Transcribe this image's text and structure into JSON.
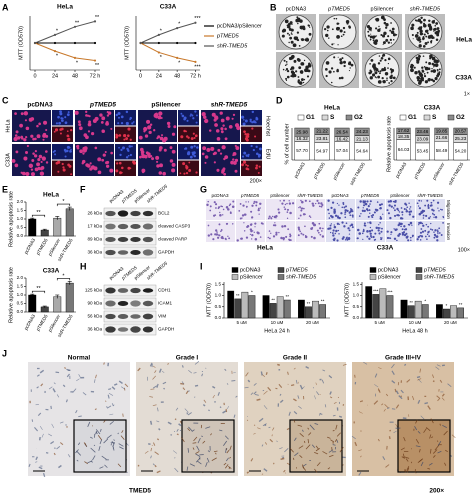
{
  "panel_letters": [
    "A",
    "B",
    "C",
    "D",
    "E",
    "F",
    "G",
    "H",
    "I",
    "J"
  ],
  "chart_data": [
    {
      "type": "line",
      "title": "HeLa",
      "ylabel": "MTT (OD570)",
      "x": [
        0,
        24,
        48,
        72
      ],
      "xlim": [
        -6,
        78
      ],
      "xticks": [
        0,
        24,
        48,
        {
          "value": 72,
          "label": "72 h"
        }
      ],
      "ylim": [
        0,
        2
      ],
      "series": [
        {
          "color": "#000000",
          "values": [
            1,
            1,
            1,
            1
          ]
        },
        {
          "color": "#c8782a",
          "values": [
            1,
            0.7,
            0.45,
            0.35
          ],
          "annotations": [
            null,
            "*",
            "*",
            "**"
          ]
        },
        {
          "color": "#555555",
          "values": [
            1,
            1.3,
            1.6,
            1.8
          ],
          "annotations": [
            null,
            "*",
            "**",
            "**"
          ]
        }
      ]
    },
    {
      "type": "line",
      "title": "C33A",
      "ylabel": "MTT (OD570)",
      "x": [
        0,
        24,
        48,
        72
      ],
      "xlim": [
        -6,
        78
      ],
      "xticks": [
        0,
        24,
        48,
        {
          "value": 72,
          "label": "72 h"
        }
      ],
      "ylim": [
        0,
        2
      ],
      "series": [
        {
          "name": "pcDNA3/pSilencer",
          "color": "#000000",
          "values": [
            1,
            1,
            1,
            1
          ]
        },
        {
          "name": "pTMED5",
          "color": "#c8782a",
          "values": [
            1,
            0.65,
            0.45,
            0.3
          ],
          "annotations": [
            null,
            "*",
            "*",
            "***"
          ]
        },
        {
          "name": "shR-TMED5",
          "color": "#555555",
          "values": [
            1,
            1.3,
            1.55,
            1.75
          ],
          "annotations": [
            null,
            "*",
            "*",
            "***"
          ]
        }
      ]
    },
    {
      "type": "stacked_bar",
      "title": "HeLa",
      "ylabel": "% of cell number",
      "categories": [
        "pcDNA3",
        "pTMED5",
        "pSilencer",
        "shR-TMED5"
      ],
      "ylim": [
        0,
        100
      ],
      "series": [
        {
          "name": "G1",
          "color": "#ffffff",
          "values": [
            57.7,
            54.97,
            57.04,
            54.64
          ],
          "value_labels": [
            "57.70",
            "54.97",
            "57.04",
            "54.64"
          ]
        },
        {
          "name": "S",
          "color": "#d9d9d9",
          "values": [
            16.32,
            23.81,
            16.42,
            21.13
          ],
          "value_labels": [
            "16.32",
            "23.81",
            "16.42",
            "21.13"
          ]
        },
        {
          "name": "G2",
          "color": "#8c8c8c",
          "values": [
            25.98,
            21.22,
            26.54,
            24.23
          ],
          "value_labels": [
            "25.98",
            "21.22",
            "26.54",
            "24.23"
          ]
        }
      ]
    },
    {
      "type": "stacked_bar",
      "title": "C33A",
      "ylabel": "Relative apoptosis rate",
      "categories": [
        "pcDNA3",
        "pTMED5",
        "pSilencer",
        "shR-TMED5"
      ],
      "ylim": [
        0,
        100
      ],
      "series": [
        {
          "name": "G1",
          "color": "#ffffff",
          "values": [
            64.03,
            53.45,
            58.49,
            54.2
          ],
          "value_labels": [
            "64.03",
            "53.45",
            "58.49",
            "54.20"
          ]
        },
        {
          "name": "S",
          "color": "#d9d9d9",
          "values": [
            18.35,
            23.09,
            21.66,
            25.23
          ],
          "value_labels": [
            "18.35",
            "23.09",
            "21.66",
            "25.23"
          ]
        },
        {
          "name": "G2",
          "color": "#8c8c8c",
          "values": [
            17.62,
            23.46,
            19.85,
            20.57
          ],
          "value_labels": [
            "17.62",
            "23.46",
            "19.85",
            "20.57"
          ]
        }
      ]
    },
    {
      "type": "bar",
      "title": "HeLa",
      "ylabel": "Relative apoptosis rate",
      "categories": [
        "pcDNA3",
        "pTMED5",
        "pSilencer",
        "shR-TMED5"
      ],
      "values": [
        1,
        0.35,
        1.05,
        1.6
      ],
      "errors": [
        0.05,
        0.05,
        0.1,
        0.1
      ],
      "colors": [
        "#000000",
        "#444444",
        "#aaaaaa",
        "#777777"
      ],
      "ylim": [
        0,
        2
      ],
      "yticks": [
        {
          "value": 0,
          "label": "0.0"
        },
        0.5,
        {
          "value": 1,
          "label": "1.0"
        },
        1.5,
        {
          "value": 2,
          "label": "2.0"
        }
      ],
      "significance": [
        "**",
        "*"
      ]
    },
    {
      "type": "bar",
      "title": "C33A",
      "ylabel": "Relative apoptosis rate",
      "categories": [
        "pcDNA3",
        "pTMED5",
        "pSilencer",
        "shR-TMED5"
      ],
      "values": [
        1,
        0.3,
        0.9,
        1.7
      ],
      "errors": [
        0.05,
        0.05,
        0.1,
        0.1
      ],
      "colors": [
        "#000000",
        "#444444",
        "#aaaaaa",
        "#777777"
      ],
      "ylim": [
        0,
        2
      ],
      "yticks": [
        {
          "value": 0,
          "label": "0.0"
        },
        0.5,
        {
          "value": 1,
          "label": "1.0"
        },
        1.5,
        {
          "value": 2,
          "label": "2.0"
        }
      ],
      "significance": [
        "**",
        "*"
      ]
    },
    {
      "type": "grouped_bar",
      "xlabel": "HeLa 24 h",
      "ylabel": "MTT (OD570)",
      "categories": [
        "5 uM",
        "10 uM",
        "20 uM"
      ],
      "ylim": [
        0,
        1.6
      ],
      "yticks": [
        {
          "value": 0,
          "label": "0.0"
        },
        0.5,
        {
          "value": 1,
          "label": "1.0"
        },
        1.5
      ],
      "series": [
        {
          "name": "pcDNA3",
          "color": "#000000",
          "values": [
            1.2,
            1.0,
            0.8
          ]
        },
        {
          "name": "pTMED5",
          "color": "#444444",
          "values": [
            0.85,
            0.65,
            0.5
          ],
          "annotations": [
            "**",
            "**",
            "**"
          ]
        },
        {
          "name": "pSilencer",
          "color": "#bbbbbb",
          "values": [
            1.15,
            0.95,
            0.75
          ]
        },
        {
          "name": "shR-TMED5",
          "color": "#777777",
          "values": [
            1.0,
            0.8,
            0.6
          ],
          "annotations": [
            "*",
            "**",
            "**"
          ]
        }
      ]
    },
    {
      "type": "grouped_bar",
      "xlabel": "HeLa 48 h",
      "ylabel": "MTT (OD570)",
      "categories": [
        "5 uM",
        "10 uM",
        "20 uM"
      ],
      "ylim": [
        0,
        1.6
      ],
      "yticks": [
        {
          "value": 0,
          "label": "0.0"
        },
        0.5,
        {
          "value": 1,
          "label": "1.0"
        },
        1.5
      ],
      "series": [
        {
          "name": "pcDNA3",
          "color": "#000000",
          "values": [
            1.4,
            0.8,
            0.6
          ]
        },
        {
          "name": "pTMED5",
          "color": "#444444",
          "values": [
            1.05,
            0.55,
            0.4
          ],
          "annotations": [
            "***",
            "**",
            "*"
          ]
        },
        {
          "name": "pSilencer",
          "color": "#bbbbbb",
          "values": [
            1.3,
            0.75,
            0.55
          ]
        },
        {
          "name": "shR-TMED5",
          "color": "#777777",
          "values": [
            1.0,
            0.6,
            0.45
          ],
          "annotations": [
            "***",
            "*",
            "**"
          ]
        }
      ]
    }
  ],
  "colony_assay": {
    "columns": [
      "pcDNA3",
      "pTMED5",
      "pSilencer",
      "shR-TMED5"
    ],
    "rows": [
      "HeLa",
      "C33A"
    ],
    "magnification": "1×"
  },
  "edu_assay": {
    "columns": [
      "pcDNA3",
      "pTMED5",
      "pSilencer",
      "shR-TMED5"
    ],
    "rows": [
      "HeLa",
      "C33A"
    ],
    "stains": [
      "Hoechst",
      "EdU"
    ],
    "magnification": "200×"
  },
  "apoptosis_blot": {
    "columns": [
      "pcDNA3",
      "pTMED5",
      "pSilencer",
      "shR-TMED5"
    ],
    "rows": [
      {
        "size": "26 kDa",
        "protein": "BCL2"
      },
      {
        "size": "17 kDa",
        "protein": "cleaved CASP3"
      },
      {
        "size": "89 kDa",
        "protein": "cleaved PARP"
      },
      {
        "size": "36 kDa",
        "protein": "GAPDH"
      }
    ]
  },
  "transwell_assay": {
    "columns": [
      "pcDNA3",
      "pTMED5",
      "pSilencer",
      "shR-TMED5"
    ],
    "cell_lines": [
      "HeLa",
      "C33A"
    ],
    "rows": [
      "Migration",
      "Invasion"
    ],
    "magnification": "100×"
  },
  "emt_blot": {
    "columns": [
      "pcDNA3",
      "pTMED5",
      "pSilencer",
      "shR-TMED5"
    ],
    "rows": [
      {
        "size": "125 kDa",
        "protein": "CDH1"
      },
      {
        "size": "90 kDa",
        "protein": "ICAM1"
      },
      {
        "size": "56 kDa",
        "protein": "VIM"
      },
      {
        "size": "36 kDa",
        "protein": "GAPDH"
      }
    ]
  },
  "ihc": {
    "columns": [
      "Normal",
      "Grade I",
      "Grade II",
      "Grade III+IV"
    ],
    "caption": "TMED5",
    "magnification": "200×"
  }
}
